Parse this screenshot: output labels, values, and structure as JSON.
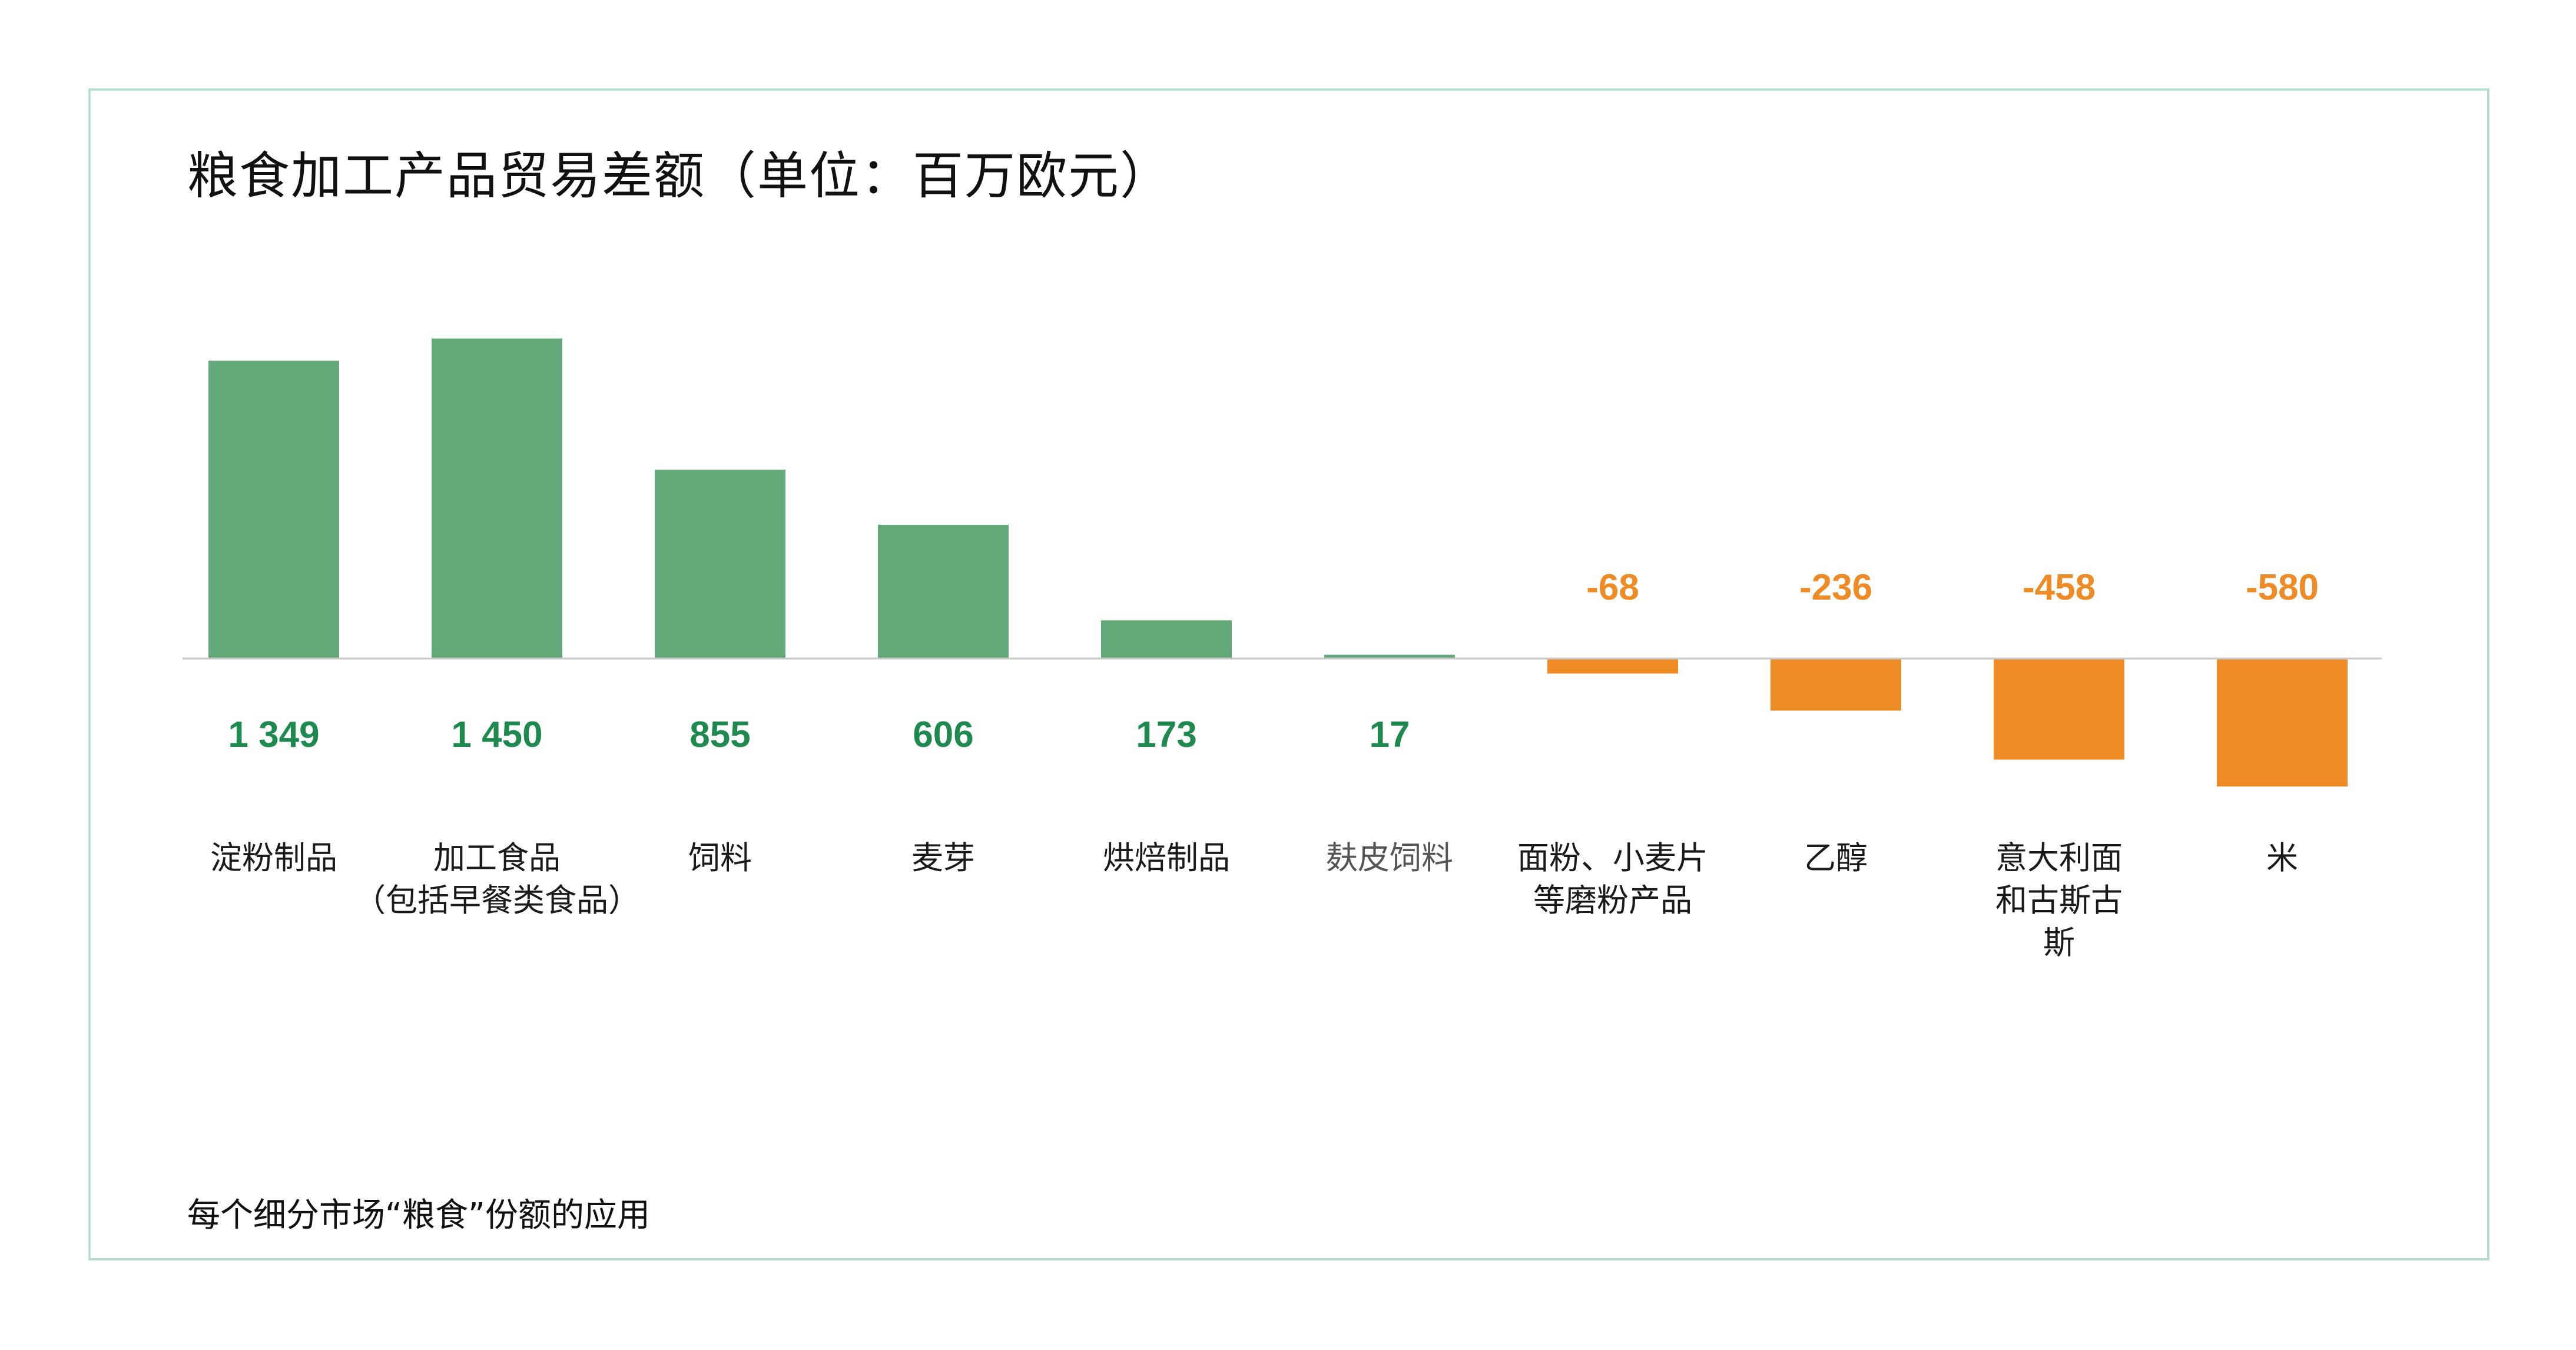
{
  "title": "粮食加工产品贸易差额（单位：百万欧元）",
  "footnote": "每个细分市场“粮食”份额的应用",
  "colors": {
    "positive": "#62a878",
    "negative": "#ef8b25",
    "positive_label": "#1e8a4f",
    "negative_label": "#ef8b25",
    "category_text": "#1a1a1a",
    "category_text_muted": "#555555",
    "axis": "#c8c8c8",
    "frame": "#b9ddd2"
  },
  "chart_data": {
    "type": "bar",
    "categories": [
      [
        "淀粉制品"
      ],
      [
        "加工食品",
        "（包括早餐类食品）"
      ],
      [
        "饲料"
      ],
      [
        "麦芽"
      ],
      [
        "烘焙制品"
      ],
      [
        "麸皮饲料"
      ],
      [
        "面粉、小麦片",
        "等磨粉产品"
      ],
      [
        "乙醇"
      ],
      [
        "意大利面",
        "和古斯古",
        "斯"
      ],
      [
        "米"
      ]
    ],
    "values": [
      1349,
      1450,
      855,
      606,
      173,
      17,
      -68,
      -236,
      -458,
      -580
    ],
    "value_labels": [
      "1 349",
      "1 450",
      "855",
      "606",
      "173",
      "17",
      "-68",
      "-236",
      "-458",
      "-580"
    ],
    "title": "粮食加工产品贸易差额（单位：百万欧元）",
    "xlabel": "",
    "ylabel": "",
    "ylim": [
      -600,
      1500
    ],
    "grid": false,
    "legend": "none"
  }
}
